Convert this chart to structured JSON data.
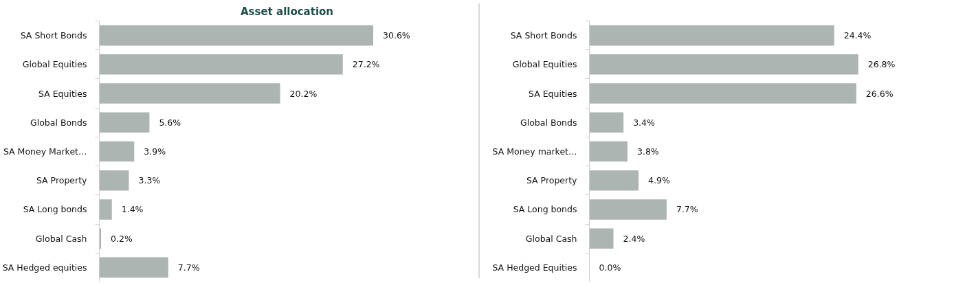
{
  "chart_data": [
    {
      "type": "bar",
      "orientation": "horizontal",
      "title": "Asset allocation",
      "categories": [
        "SA Short Bonds",
        "Global Equities",
        "SA Equities",
        "Global Bonds",
        "SA Money Market…",
        "SA Property",
        "SA Long bonds",
        "Global Cash",
        "SA Hedged equities"
      ],
      "values": [
        30.6,
        27.2,
        20.2,
        5.6,
        3.9,
        3.3,
        1.4,
        0.2,
        7.7
      ],
      "value_labels": [
        "30.6%",
        "27.2%",
        "20.2%",
        "5.6%",
        "3.9%",
        "3.3%",
        "1.4%",
        "0.2%",
        "7.7%"
      ],
      "color": "#adb5b2",
      "grid": false
    },
    {
      "type": "bar",
      "orientation": "horizontal",
      "categories": [
        "SA Short Bonds",
        "Global Equities",
        "SA Equities",
        "Global Bonds",
        "SA Money market…",
        "SA Property",
        "SA Long bonds",
        "Global Cash",
        "SA Hedged Equities"
      ],
      "values": [
        24.4,
        26.8,
        26.6,
        3.4,
        3.8,
        4.9,
        7.7,
        2.4,
        0.0
      ],
      "value_labels": [
        "24.4%",
        "26.8%",
        "26.6%",
        "3.4%",
        "3.8%",
        "4.9%",
        "7.7%",
        "2.4%",
        "0.0%"
      ],
      "color": "#adb5b2",
      "grid": false
    }
  ]
}
